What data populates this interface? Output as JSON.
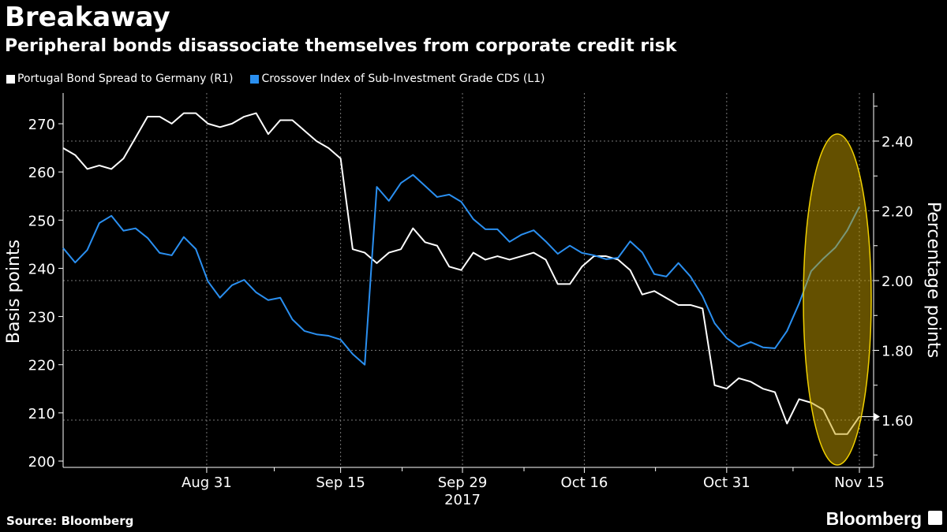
{
  "header": {
    "title": "Breakaway",
    "subtitle": "Peripheral bonds disassociate themselves from corporate credit risk"
  },
  "footer": {
    "source": "Source: Bloomberg",
    "brand": "Bloomberg"
  },
  "colors": {
    "portugal": "#ffffff",
    "crossover": "#2a8ff0",
    "highlight": "#f0d000",
    "background": "#000000"
  },
  "chart_data": {
    "type": "line",
    "title": "Breakaway",
    "subtitle": "Peripheral bonds disassociate themselves from corporate credit risk",
    "x_unit": "business day index (Aug 15 – Nov 15, 2017)",
    "x_ticks": [
      {
        "label": "Aug 31",
        "i": 11.9
      },
      {
        "label": "Sep 15",
        "i": 23
      },
      {
        "label": "Sep 29",
        "i": 33.1
      },
      {
        "label": "Oct 16",
        "i": 43.2
      },
      {
        "label": "Oct 31",
        "i": 55
      },
      {
        "label": "Nov 15",
        "i": 66
      }
    ],
    "x_year_label": "2017",
    "left_axis": {
      "label": "Basis points",
      "ylim": [
        198,
        276
      ],
      "ticks": [
        200,
        210,
        220,
        230,
        240,
        250,
        260,
        270
      ]
    },
    "right_axis": {
      "label": "Percentage points",
      "ylim": [
        1.48,
        2.55
      ],
      "ticks": [
        "1.60",
        "1.80",
        "2.00",
        "2.20",
        "2.40"
      ],
      "last_value": "1.60"
    },
    "legend_position": "top-left",
    "series": [
      {
        "name": "Portugal Bond Spread to Germany (R1)",
        "axis": "right",
        "color": "#ffffff",
        "values": [
          2.38,
          2.36,
          2.32,
          2.33,
          2.32,
          2.35,
          2.41,
          2.47,
          2.47,
          2.45,
          2.48,
          2.48,
          2.45,
          2.44,
          2.45,
          2.47,
          2.48,
          2.42,
          2.46,
          2.46,
          2.43,
          2.4,
          2.38,
          2.35,
          2.09,
          2.08,
          2.05,
          2.08,
          2.09,
          2.15,
          2.11,
          2.1,
          2.04,
          2.03,
          2.08,
          2.06,
          2.07,
          2.06,
          2.07,
          2.08,
          2.06,
          1.99,
          1.99,
          2.04,
          2.07,
          2.07,
          2.06,
          2.03,
          1.96,
          1.97,
          1.95,
          1.93,
          1.93,
          1.92,
          1.7,
          1.69,
          1.72,
          1.71,
          1.69,
          1.68,
          1.59,
          1.66,
          1.65,
          1.63,
          1.56,
          1.56,
          1.61
        ]
      },
      {
        "name": "Crossover Index of Sub-Investment Grade CDS (L1)",
        "axis": "left",
        "color": "#2a8ff0",
        "values": [
          244.2,
          241.2,
          243.8,
          249.4,
          250.9,
          247.8,
          248.3,
          246.3,
          243.2,
          242.7,
          246.5,
          244.0,
          237.3,
          233.9,
          236.5,
          237.6,
          235.0,
          233.4,
          233.9,
          229.4,
          227.0,
          226.3,
          226.0,
          225.2,
          222.2,
          220.0,
          256.9,
          254.0,
          257.7,
          259.4,
          257.1,
          254.8,
          255.3,
          253.8,
          250.2,
          248.1,
          248.1,
          245.5,
          247.0,
          247.9,
          245.6,
          243.0,
          244.7,
          243.2,
          242.7,
          241.9,
          242.2,
          245.6,
          243.3,
          238.8,
          238.3,
          241.1,
          238.3,
          234.2,
          228.6,
          225.5,
          223.7,
          224.7,
          223.6,
          223.4,
          227.0,
          232.7,
          239.4,
          242.0,
          244.3,
          247.9,
          252.8
        ]
      }
    ],
    "annotation": "highlight ellipse over last ~6 sessions"
  }
}
